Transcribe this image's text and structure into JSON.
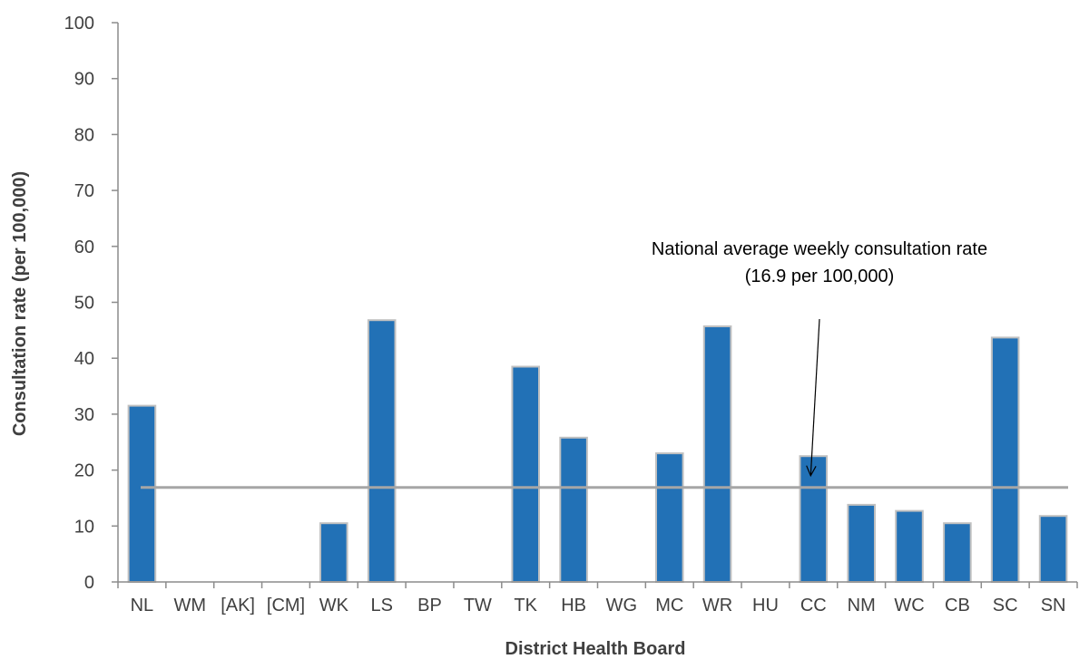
{
  "chart_data": {
    "type": "bar",
    "xlabel": "District Health Board",
    "ylabel": "Consultation rate (per 100,000)",
    "ylim": [
      0,
      100
    ],
    "yticks": [
      0,
      10,
      20,
      30,
      40,
      50,
      60,
      70,
      80,
      90,
      100
    ],
    "categories": [
      "NL",
      "WM",
      "[AK]",
      "[CM]",
      "WK",
      "LS",
      "BP",
      "TW",
      "TK",
      "HB",
      "WG",
      "MC",
      "WR",
      "HU",
      "CC",
      "NM",
      "WC",
      "CB",
      "SC",
      "SN"
    ],
    "values": [
      31.5,
      0,
      0,
      0,
      10.5,
      46.8,
      0,
      0,
      38.5,
      25.8,
      0,
      23.0,
      45.7,
      0,
      22.5,
      13.8,
      12.7,
      10.5,
      43.7,
      11.8
    ],
    "reference_line": {
      "value": 16.9
    },
    "annotation": {
      "line1": "National average weekly consultation rate",
      "line2": "(16.9 per 100,000)",
      "arrow_to_category": "CC",
      "arrow_to_value": 19
    },
    "grid": false,
    "legend": "none"
  },
  "colors": {
    "bar_fill": "#2271b6",
    "bar_stroke": "#c0c0c0",
    "reference_line": "#a6a6a6",
    "axis": "#8c8c8c",
    "text": "#404040"
  }
}
